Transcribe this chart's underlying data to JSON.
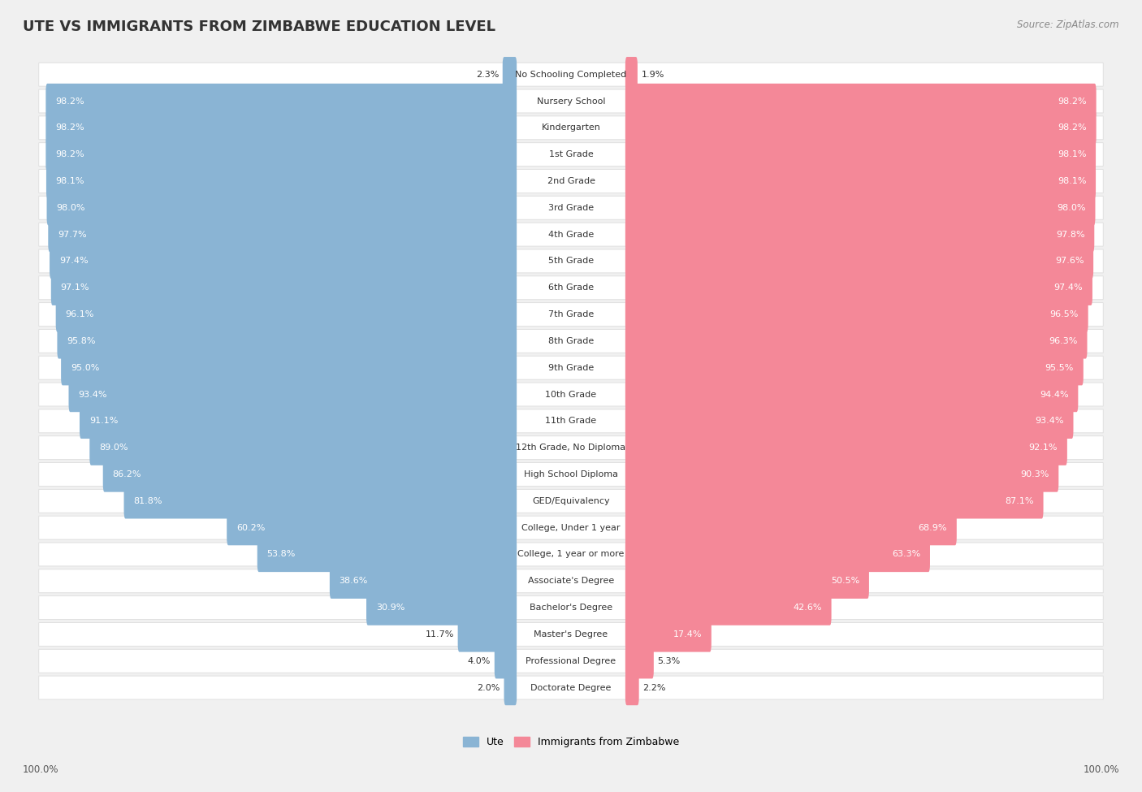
{
  "title": "UTE VS IMMIGRANTS FROM ZIMBABWE EDUCATION LEVEL",
  "source": "Source: ZipAtlas.com",
  "categories": [
    "No Schooling Completed",
    "Nursery School",
    "Kindergarten",
    "1st Grade",
    "2nd Grade",
    "3rd Grade",
    "4th Grade",
    "5th Grade",
    "6th Grade",
    "7th Grade",
    "8th Grade",
    "9th Grade",
    "10th Grade",
    "11th Grade",
    "12th Grade, No Diploma",
    "High School Diploma",
    "GED/Equivalency",
    "College, Under 1 year",
    "College, 1 year or more",
    "Associate's Degree",
    "Bachelor's Degree",
    "Master's Degree",
    "Professional Degree",
    "Doctorate Degree"
  ],
  "ute_values": [
    2.3,
    98.2,
    98.2,
    98.2,
    98.1,
    98.0,
    97.7,
    97.4,
    97.1,
    96.1,
    95.8,
    95.0,
    93.4,
    91.1,
    89.0,
    86.2,
    81.8,
    60.2,
    53.8,
    38.6,
    30.9,
    11.7,
    4.0,
    2.0
  ],
  "zimb_values": [
    1.9,
    98.2,
    98.2,
    98.1,
    98.1,
    98.0,
    97.8,
    97.6,
    97.4,
    96.5,
    96.3,
    95.5,
    94.4,
    93.4,
    92.1,
    90.3,
    87.1,
    68.9,
    63.3,
    50.5,
    42.6,
    17.4,
    5.3,
    2.2
  ],
  "ute_color": "#8ab4d4",
  "zimb_color": "#f48898",
  "bg_color": "#f0f0f0",
  "row_bg_color": "#ffffff",
  "legend_ute": "Ute",
  "legend_zimb": "Immigrants from Zimbabwe",
  "axis_label_left": "100.0%",
  "axis_label_right": "100.0%",
  "title_fontsize": 13,
  "label_fontsize": 8,
  "value_fontsize": 8
}
